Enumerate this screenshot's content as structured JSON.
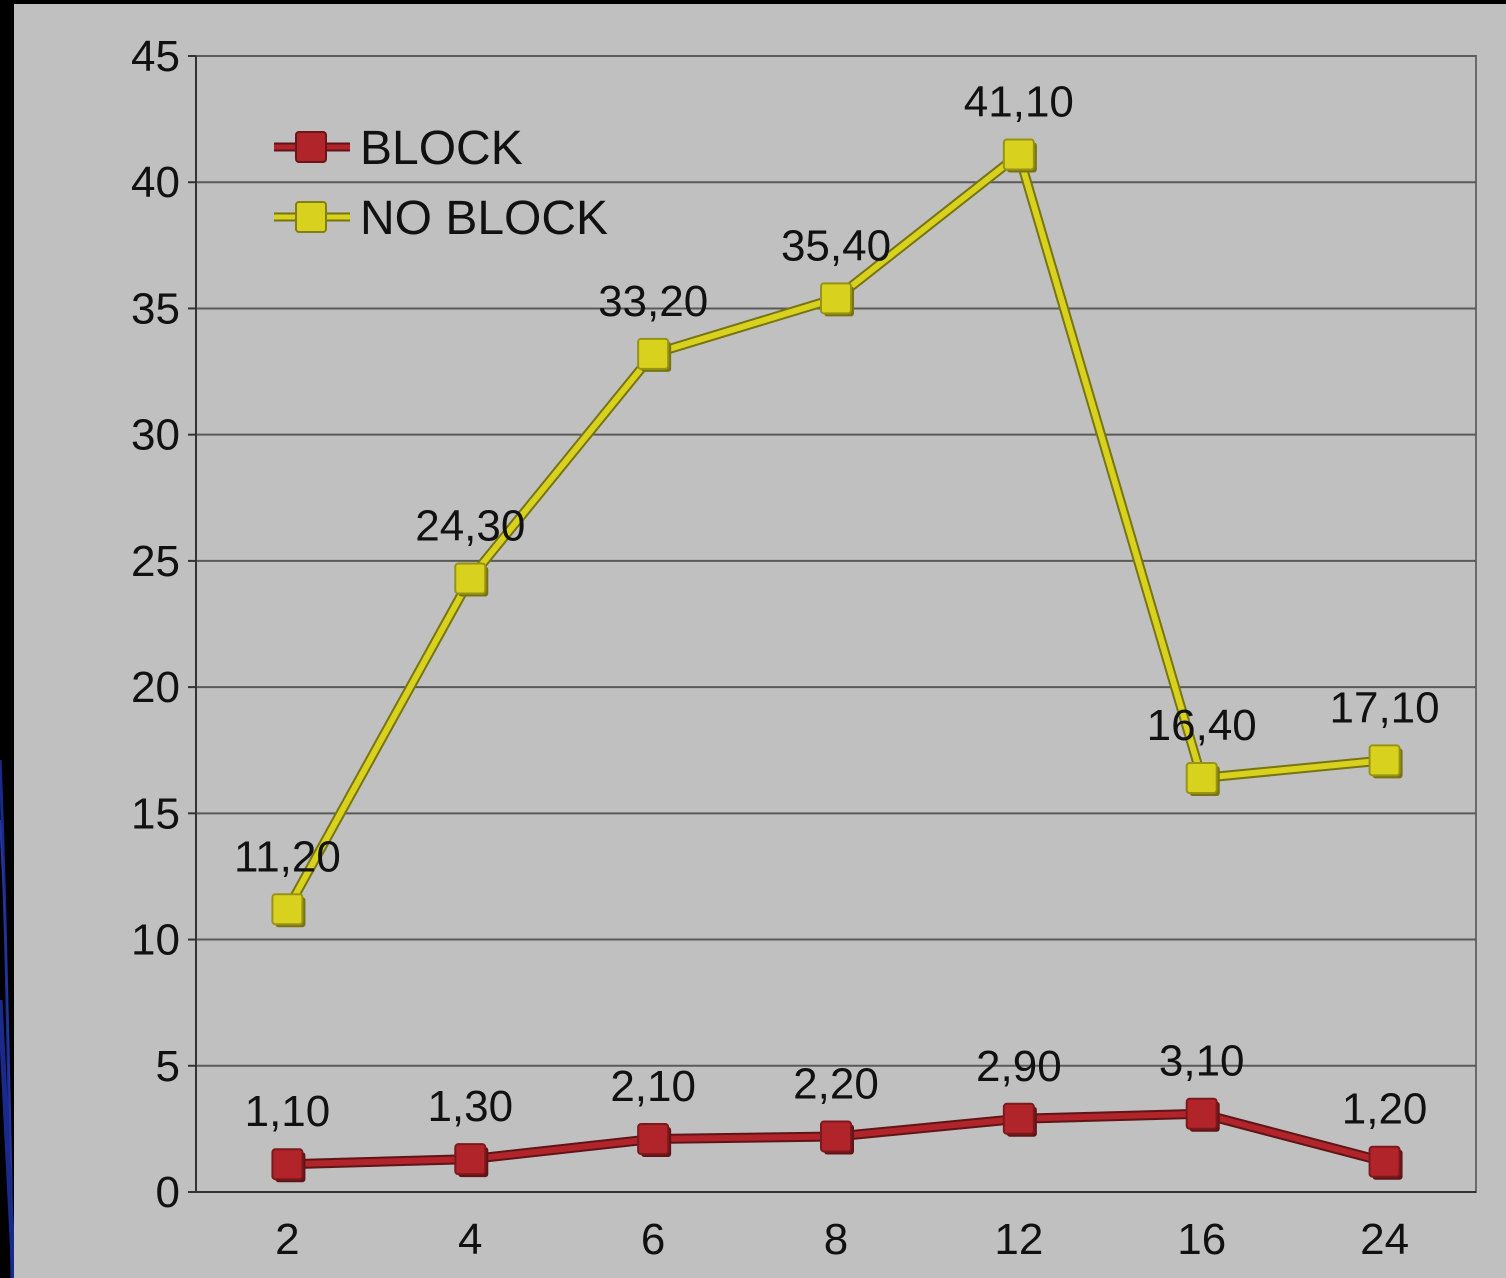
{
  "colors": {
    "slide_bg": "#000000",
    "slide_accent": "#1a2a8c",
    "plot_bg": "#c0c0c0",
    "grid": "#5a5a5a",
    "block_series": "#b0242a",
    "no_block_series": "#d8d21e"
  },
  "chart_data": {
    "type": "line",
    "title": "",
    "xlabel": "",
    "ylabel": "",
    "categories": [
      "2",
      "4",
      "6",
      "8",
      "12",
      "16",
      "24"
    ],
    "ylim": [
      0,
      45
    ],
    "yticks": [
      0,
      5,
      10,
      15,
      20,
      25,
      30,
      35,
      40,
      45
    ],
    "grid": true,
    "legend_position": "top-left",
    "series": [
      {
        "name": "BLOCK",
        "color": "#b0242a",
        "values": [
          1.1,
          1.3,
          2.1,
          2.2,
          2.9,
          3.1,
          1.2
        ],
        "labels": [
          "1,10",
          "1,30",
          "2,10",
          "2,20",
          "2,90",
          "3,10",
          "1,20"
        ]
      },
      {
        "name": "NO BLOCK",
        "color": "#d8d21e",
        "values": [
          11.2,
          24.3,
          33.2,
          35.4,
          41.1,
          16.4,
          17.1
        ],
        "labels": [
          "11,20",
          "24,30",
          "33,20",
          "35,40",
          "41,10",
          "16,40",
          "17,10"
        ]
      }
    ]
  }
}
